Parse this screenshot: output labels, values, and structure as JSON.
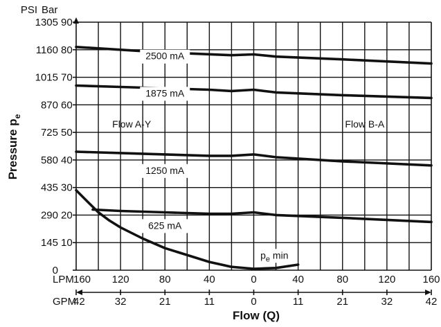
{
  "chart_data": {
    "type": "line",
    "y_axis_units": {
      "psi": "PSI",
      "bar": "Bar"
    },
    "ylabel_main": "Pressure p",
    "ylabel_sub": "e",
    "xlabel": "Flow (Q)",
    "x_unit_lpm": "LPM",
    "x_unit_gpm": "GPM",
    "ylim_bar": [
      0,
      90
    ],
    "xlim_signed": [
      -160,
      160
    ],
    "grid": true,
    "bar_ticks": [
      {
        "bar": 0,
        "bar_label": "",
        "psi_label": "0"
      },
      {
        "bar": 10,
        "bar_label": "10",
        "psi_label": "145"
      },
      {
        "bar": 20,
        "bar_label": "20",
        "psi_label": "290"
      },
      {
        "bar": 30,
        "bar_label": "30",
        "psi_label": "435"
      },
      {
        "bar": 40,
        "bar_label": "40",
        "psi_label": "580"
      },
      {
        "bar": 50,
        "bar_label": "50",
        "psi_label": "725"
      },
      {
        "bar": 60,
        "bar_label": "60",
        "psi_label": "870"
      },
      {
        "bar": 70,
        "bar_label": "70",
        "psi_label": "1015"
      },
      {
        "bar": 80,
        "bar_label": "80",
        "psi_label": "1160"
      },
      {
        "bar": 90,
        "bar_label": "90",
        "psi_label": "1305"
      }
    ],
    "x_ticks": [
      {
        "x": -160,
        "lpm": "160",
        "gpm": "42"
      },
      {
        "x": -120,
        "lpm": "120",
        "gpm": "32"
      },
      {
        "x": -80,
        "lpm": "80",
        "gpm": "21"
      },
      {
        "x": -40,
        "lpm": "40",
        "gpm": "11"
      },
      {
        "x": 0,
        "lpm": "0",
        "gpm": "0"
      },
      {
        "x": 40,
        "lpm": "40",
        "gpm": "11"
      },
      {
        "x": 80,
        "lpm": "80",
        "gpm": "21"
      },
      {
        "x": 120,
        "lpm": "120",
        "gpm": "32"
      },
      {
        "x": 160,
        "lpm": "160",
        "gpm": "42"
      }
    ],
    "x_grid_lines": [
      -160,
      -140,
      -120,
      -100,
      -80,
      -60,
      -40,
      -20,
      0,
      20,
      40,
      60,
      80,
      100,
      120,
      140,
      160
    ],
    "regions": [
      {
        "text": "Flow A-Y",
        "x": -110,
        "y": 53
      },
      {
        "text": "Flow B-A",
        "x": 100,
        "y": 53
      }
    ],
    "series": [
      {
        "name": "2500 mA",
        "label_at": {
          "x": -80,
          "y": 76.5
        },
        "points": [
          [
            -160,
            81
          ],
          [
            -120,
            80
          ],
          [
            -80,
            79
          ],
          [
            -50,
            78.5
          ],
          [
            -20,
            78
          ],
          [
            0,
            78.3
          ],
          [
            20,
            77.5
          ],
          [
            80,
            76.5
          ],
          [
            160,
            75
          ]
        ]
      },
      {
        "name": "1875 mA",
        "label_at": {
          "x": -80,
          "y": 63
        },
        "points": [
          [
            -160,
            67
          ],
          [
            -120,
            66.5
          ],
          [
            -80,
            66
          ],
          [
            -40,
            65.5
          ],
          [
            -20,
            65
          ],
          [
            0,
            65.5
          ],
          [
            20,
            64.5
          ],
          [
            80,
            63.5
          ],
          [
            160,
            62.5
          ]
        ]
      },
      {
        "name": "1250 mA",
        "label_at": {
          "x": -80,
          "y": 35
        },
        "points": [
          [
            -160,
            43
          ],
          [
            -120,
            42.5
          ],
          [
            -80,
            42
          ],
          [
            -40,
            41.5
          ],
          [
            -20,
            41.5
          ],
          [
            0,
            42
          ],
          [
            20,
            41
          ],
          [
            80,
            39.5
          ],
          [
            160,
            38
          ]
        ]
      },
      {
        "name": "625 mA",
        "label_at": {
          "x": -80,
          "y": 15
        },
        "points": [
          [
            -145,
            22
          ],
          [
            -120,
            21.5
          ],
          [
            -80,
            21
          ],
          [
            -40,
            20.5
          ],
          [
            -20,
            20.5
          ],
          [
            0,
            21
          ],
          [
            20,
            20
          ],
          [
            80,
            19
          ],
          [
            160,
            17.5
          ]
        ]
      },
      {
        "name": "p_e min",
        "label_main": "p",
        "label_sub": "e",
        "label_rest": " min",
        "label_at": {
          "x": 6,
          "y": 4.2
        },
        "points": [
          [
            -160,
            29
          ],
          [
            -150,
            25
          ],
          [
            -140,
            21
          ],
          [
            -130,
            18
          ],
          [
            -120,
            15.5
          ],
          [
            -100,
            11.5
          ],
          [
            -80,
            8
          ],
          [
            -60,
            5.5
          ],
          [
            -40,
            3
          ],
          [
            -20,
            1.2
          ],
          [
            0,
            0.5
          ],
          [
            20,
            0.8
          ],
          [
            40,
            2
          ]
        ]
      }
    ]
  }
}
